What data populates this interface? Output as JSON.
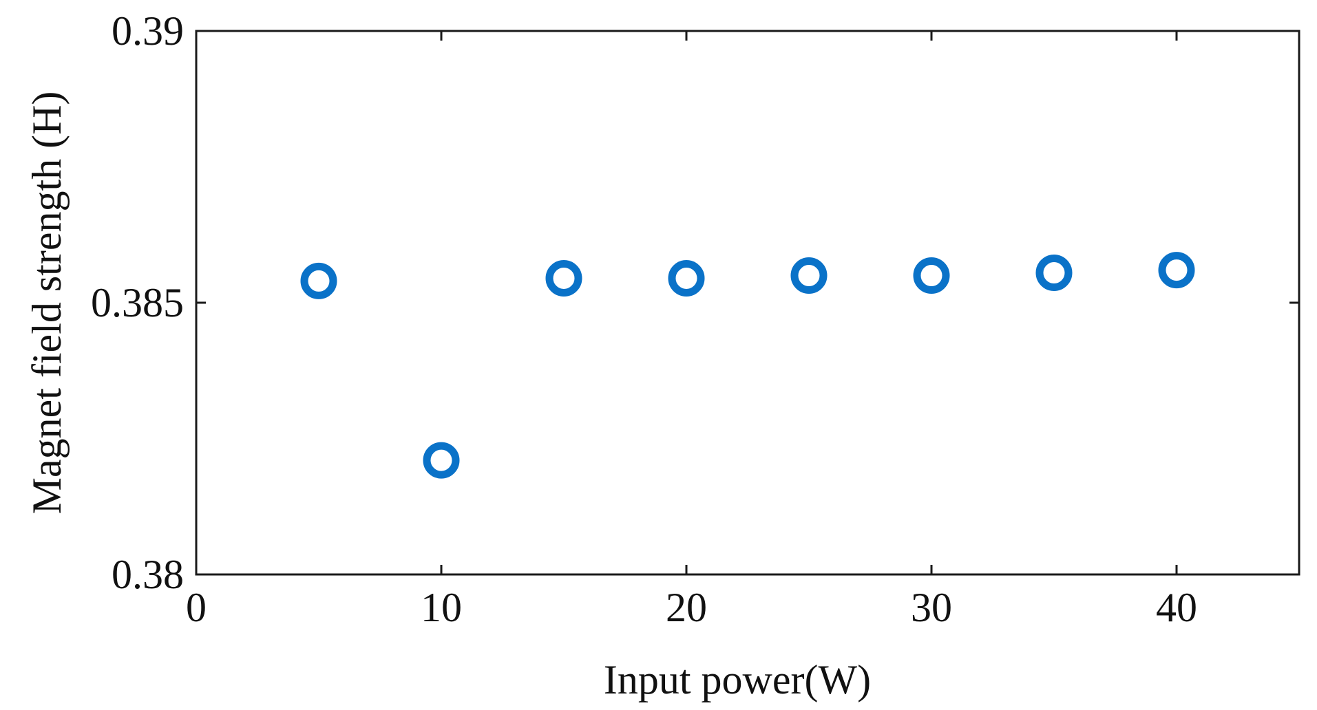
{
  "chart_data": {
    "type": "scatter",
    "title": "",
    "xlabel": "Input power(W)",
    "ylabel": "Magnet field strength (H)",
    "xlim": [
      0,
      45
    ],
    "ylim": [
      0.38,
      0.39
    ],
    "xticks": [
      0,
      10,
      20,
      30,
      40
    ],
    "xtick_labels": [
      "0",
      "10",
      "20",
      "30",
      "40"
    ],
    "yticks": [
      0.38,
      0.385,
      0.39
    ],
    "ytick_labels": [
      "0.38",
      "0.385",
      "0.39"
    ],
    "grid": false,
    "marker": "open-circle",
    "color": "#0a72c8",
    "series": [
      {
        "x": [
          5,
          10,
          15,
          20,
          25,
          30,
          35,
          40
        ],
        "y": [
          0.3854,
          0.3821,
          0.38545,
          0.38545,
          0.3855,
          0.3855,
          0.38555,
          0.3856
        ]
      }
    ]
  }
}
